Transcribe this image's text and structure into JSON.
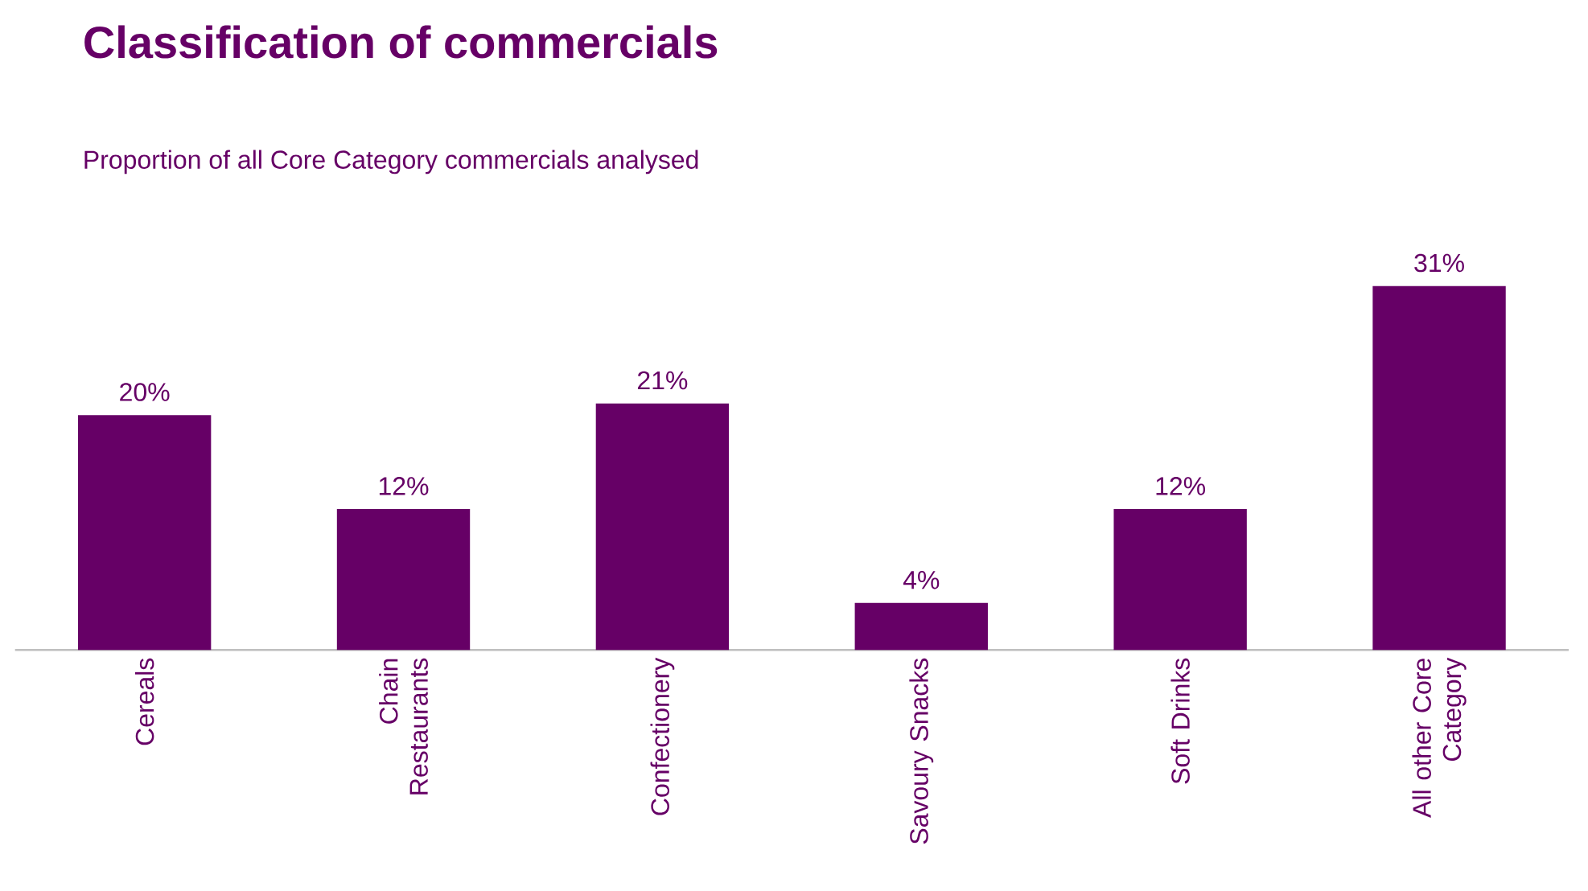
{
  "chart_data": {
    "type": "bar",
    "title": "Classification of commercials",
    "subtitle": "Proportion of all Core Category commercials analysed",
    "categories": [
      "Cereals",
      "Chain Restaurants",
      "Confectionery",
      "Savoury Snacks",
      "Soft Drinks",
      "All other Core Category"
    ],
    "values": [
      20,
      12,
      21,
      4,
      12,
      31
    ],
    "value_labels": [
      "20%",
      "12%",
      "21%",
      "4%",
      "12%",
      "31%"
    ],
    "color": "#660066"
  }
}
